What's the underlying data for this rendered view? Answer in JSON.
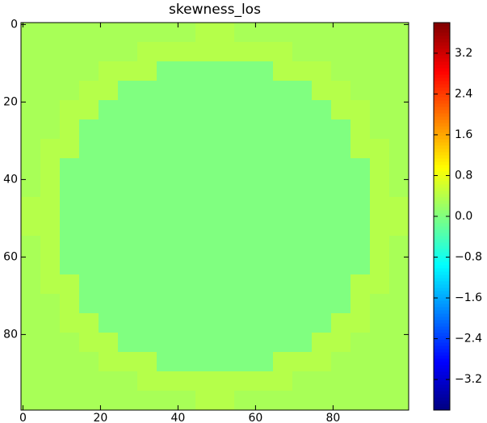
{
  "chart_data": {
    "type": "heatmap",
    "title": "skewness_los",
    "colormap": "jet",
    "clim": [
      -3.8,
      3.8
    ],
    "xlim": [
      -0.5,
      99.5
    ],
    "ylim": [
      99.5,
      -0.5
    ],
    "xticks": [
      0,
      20,
      40,
      60,
      80
    ],
    "yticks": [
      0,
      20,
      40,
      60,
      80
    ],
    "cticks": [
      {
        "value": -3.2,
        "label": "−3.2"
      },
      {
        "value": -2.4,
        "label": "−2.4"
      },
      {
        "value": -1.6,
        "label": "−1.6"
      },
      {
        "value": -0.8,
        "label": "−0.8"
      },
      {
        "value": 0,
        "label": "0.0"
      },
      0.8,
      1.6,
      2.4,
      3.2
    ],
    "values": [
      [
        0.3,
        0.3,
        0.3,
        0.3,
        0.3,
        0.3,
        0.3,
        0.3,
        0.3,
        0.4,
        0.4,
        0.3,
        0.3,
        0.3,
        0.3,
        0.3,
        0.3,
        0.3,
        0.3,
        0.3
      ],
      [
        0.3,
        0.3,
        0.3,
        0.3,
        0.3,
        0.3,
        0.4,
        0.4,
        0.4,
        0.4,
        0.4,
        0.4,
        0.4,
        0.4,
        0.3,
        0.3,
        0.3,
        0.3,
        0.3,
        0.3
      ],
      [
        0.3,
        0.3,
        0.3,
        0.3,
        0.4,
        0.4,
        0.4,
        0.0,
        0.0,
        0.0,
        0.0,
        0.0,
        0.0,
        0.4,
        0.4,
        0.4,
        0.3,
        0.3,
        0.3,
        0.3
      ],
      [
        0.3,
        0.3,
        0.3,
        0.4,
        0.4,
        0.0,
        0.0,
        0.0,
        0.0,
        0.0,
        0.0,
        0.0,
        0.0,
        0.0,
        0.0,
        0.4,
        0.4,
        0.3,
        0.3,
        0.3
      ],
      [
        0.3,
        0.3,
        0.4,
        0.4,
        0.0,
        0.0,
        0.0,
        0.0,
        0.0,
        0.0,
        0.0,
        0.0,
        0.0,
        0.0,
        0.0,
        0.0,
        0.4,
        0.4,
        0.3,
        0.3
      ],
      [
        0.3,
        0.3,
        0.4,
        0.0,
        0.0,
        0.0,
        0.0,
        0.0,
        0.0,
        0.0,
        0.0,
        0.0,
        0.0,
        0.0,
        0.0,
        0.0,
        0.0,
        0.4,
        0.3,
        0.3
      ],
      [
        0.3,
        0.4,
        0.4,
        0.0,
        0.0,
        0.0,
        0.0,
        0.0,
        0.0,
        0.0,
        0.0,
        0.0,
        0.0,
        0.0,
        0.0,
        0.0,
        0.0,
        0.4,
        0.4,
        0.3
      ],
      [
        0.3,
        0.4,
        0.0,
        0.0,
        0.0,
        0.0,
        0.0,
        0.0,
        0.0,
        0.0,
        0.0,
        0.0,
        0.0,
        0.0,
        0.0,
        0.0,
        0.0,
        0.0,
        0.4,
        0.3
      ],
      [
        0.3,
        0.4,
        0.0,
        0.0,
        0.0,
        0.0,
        0.0,
        0.0,
        0.0,
        0.0,
        0.0,
        0.0,
        0.0,
        0.0,
        0.0,
        0.0,
        0.0,
        0.0,
        0.4,
        0.3
      ],
      [
        0.4,
        0.4,
        0.0,
        0.0,
        0.0,
        0.0,
        0.0,
        0.0,
        0.0,
        0.0,
        0.0,
        0.0,
        0.0,
        0.0,
        0.0,
        0.0,
        0.0,
        0.0,
        0.4,
        0.4
      ],
      [
        0.4,
        0.4,
        0.0,
        0.0,
        0.0,
        0.0,
        0.0,
        0.0,
        0.0,
        0.0,
        0.0,
        0.0,
        0.0,
        0.0,
        0.0,
        0.0,
        0.0,
        0.0,
        0.4,
        0.4
      ],
      [
        0.3,
        0.4,
        0.0,
        0.0,
        0.0,
        0.0,
        0.0,
        0.0,
        0.0,
        0.0,
        0.0,
        0.0,
        0.0,
        0.0,
        0.0,
        0.0,
        0.0,
        0.0,
        0.4,
        0.3
      ],
      [
        0.3,
        0.4,
        0.0,
        0.0,
        0.0,
        0.0,
        0.0,
        0.0,
        0.0,
        0.0,
        0.0,
        0.0,
        0.0,
        0.0,
        0.0,
        0.0,
        0.0,
        0.0,
        0.4,
        0.3
      ],
      [
        0.3,
        0.4,
        0.4,
        0.0,
        0.0,
        0.0,
        0.0,
        0.0,
        0.0,
        0.0,
        0.0,
        0.0,
        0.0,
        0.0,
        0.0,
        0.0,
        0.0,
        0.4,
        0.4,
        0.3
      ],
      [
        0.3,
        0.3,
        0.4,
        0.0,
        0.0,
        0.0,
        0.0,
        0.0,
        0.0,
        0.0,
        0.0,
        0.0,
        0.0,
        0.0,
        0.0,
        0.0,
        0.0,
        0.4,
        0.3,
        0.3
      ],
      [
        0.3,
        0.3,
        0.4,
        0.4,
        0.0,
        0.0,
        0.0,
        0.0,
        0.0,
        0.0,
        0.0,
        0.0,
        0.0,
        0.0,
        0.0,
        0.0,
        0.4,
        0.4,
        0.3,
        0.3
      ],
      [
        0.3,
        0.3,
        0.3,
        0.4,
        0.4,
        0.0,
        0.0,
        0.0,
        0.0,
        0.0,
        0.0,
        0.0,
        0.0,
        0.0,
        0.0,
        0.4,
        0.4,
        0.3,
        0.3,
        0.3
      ],
      [
        0.3,
        0.3,
        0.3,
        0.3,
        0.4,
        0.4,
        0.4,
        0.0,
        0.0,
        0.0,
        0.0,
        0.0,
        0.0,
        0.4,
        0.4,
        0.4,
        0.3,
        0.3,
        0.3,
        0.3
      ],
      [
        0.3,
        0.3,
        0.3,
        0.3,
        0.3,
        0.3,
        0.4,
        0.4,
        0.4,
        0.4,
        0.4,
        0.4,
        0.4,
        0.4,
        0.3,
        0.3,
        0.3,
        0.3,
        0.3,
        0.3
      ],
      [
        0.3,
        0.3,
        0.3,
        0.3,
        0.3,
        0.3,
        0.3,
        0.3,
        0.3,
        0.4,
        0.4,
        0.3,
        0.3,
        0.3,
        0.3,
        0.3,
        0.3,
        0.3,
        0.3,
        0.3
      ]
    ]
  }
}
